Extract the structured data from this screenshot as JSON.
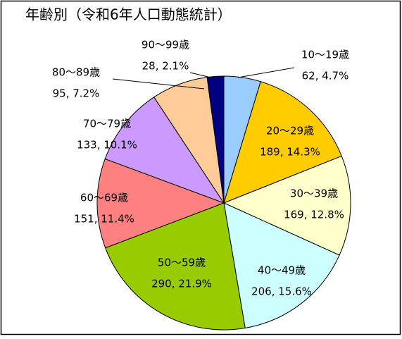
{
  "chart_data": {
    "type": "pie",
    "title": "年齢別（令和6年人口動態統計）",
    "categories": [
      "10〜19歳",
      "20〜29歳",
      "30〜39歳",
      "40〜49歳",
      "50〜59歳",
      "60〜69歳",
      "70〜79歳",
      "80〜89歳",
      "90〜99歳"
    ],
    "values": [
      62,
      189,
      169,
      206,
      290,
      151,
      133,
      95,
      28
    ],
    "value_labels": [
      "62, 4.7%",
      "189, 14.3%",
      "169, 12.8%",
      "206, 15.6%",
      "290, 21.9%",
      "151, 11.4%",
      "133, 10.1%",
      "95, 7.2%",
      "28, 2.1%"
    ],
    "colors": [
      "#99ccff",
      "#ffcc00",
      "#ffffcc",
      "#ccffff",
      "#99cc00",
      "#ff8080",
      "#cc99ff",
      "#ffcc99",
      "#000080"
    ]
  }
}
